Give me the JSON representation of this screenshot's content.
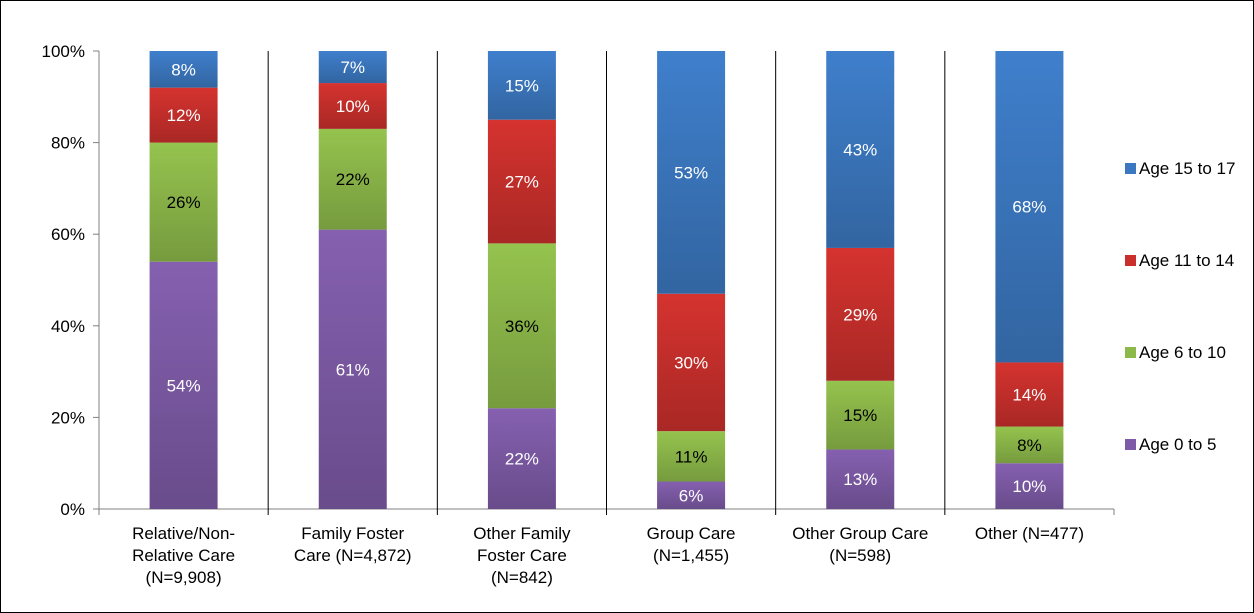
{
  "chart_data": {
    "type": "bar",
    "stacked": true,
    "categories": [
      [
        "Relative/Non-",
        "Relative Care",
        "(N=9,908)"
      ],
      [
        "Family Foster",
        "Care (N=4,872)"
      ],
      [
        "Other Family",
        "Foster Care",
        "(N=842)"
      ],
      [
        "Group Care",
        "(N=1,455)"
      ],
      [
        "Other Group Care",
        "(N=598)"
      ],
      [
        "Other (N=477)"
      ]
    ],
    "series": [
      {
        "name": "Age 0 to 5",
        "values": [
          54,
          61,
          22,
          6,
          13,
          10
        ],
        "color": "#7D5BA6",
        "label_color": "#ffffff"
      },
      {
        "name": "Age 6 to 10",
        "values": [
          26,
          22,
          36,
          11,
          15,
          8
        ],
        "color": "#8DB84A",
        "label_color": "#000000"
      },
      {
        "name": "Age 11 to 14",
        "values": [
          12,
          10,
          27,
          30,
          29,
          14
        ],
        "color": "#C9302C",
        "label_color": "#ffffff"
      },
      {
        "name": "Age 15 to 17",
        "values": [
          8,
          7,
          15,
          53,
          43,
          68
        ],
        "color": "#3B78C0",
        "label_color": "#ffffff"
      }
    ],
    "legend_order": [
      "Age 15 to 17",
      "Age 11 to 14",
      "Age 6 to 10",
      "Age 0 to 5"
    ],
    "y_ticks": [
      "0%",
      "20%",
      "40%",
      "60%",
      "80%",
      "100%"
    ],
    "ylim": [
      0,
      100
    ],
    "legend_position": "right",
    "grid": false,
    "category_separators": true
  }
}
